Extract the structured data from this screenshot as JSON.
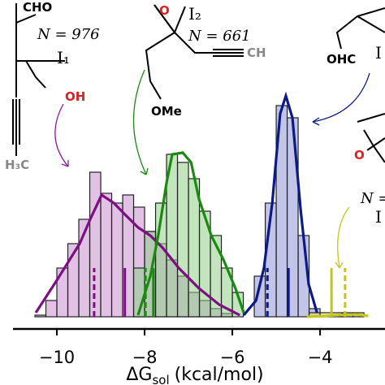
{
  "chart_data": {
    "type": "histogram",
    "xlim": [
      -11,
      -2.52
    ],
    "ylim": [
      0,
      60
    ],
    "xticks": [
      {
        "value": -10,
        "label": "−10"
      },
      {
        "value": -8,
        "label": "−8"
      },
      {
        "value": -6,
        "label": "−6"
      },
      {
        "value": -4,
        "label": "−4"
      }
    ],
    "xlabel": {
      "main": "ΔG",
      "sub": "sol",
      "unit": "(kcal/mol)"
    },
    "series": [
      {
        "color": "#c98fcf",
        "edge": "#222222",
        "curve_color": "#7d0f82",
        "bins": [
          -10.5,
          -10.25,
          -10.0,
          -9.75,
          -9.5,
          -9.25,
          -9.0,
          -8.75,
          -8.5,
          -8.25,
          -8.0,
          -7.75,
          -7.5,
          -7.25,
          -7.0,
          -6.75,
          -6.5,
          -6.25,
          -6.0
        ],
        "values": [
          0.4,
          4,
          12,
          18,
          24,
          35.6,
          30.4,
          28,
          30,
          27,
          21,
          18,
          14,
          10,
          6,
          4,
          2,
          0.8
        ],
        "curve": {
          "x": [
            -10.48,
            -10.0,
            -9.48,
            -9.24,
            -8.98,
            -8.7,
            -8.43,
            -8.15,
            -7.87,
            -7.59,
            -7.22,
            -6.76,
            -6.3,
            -5.83
          ],
          "y": [
            1,
            9,
            18,
            24,
            30,
            28,
            25,
            22,
            20,
            17,
            12,
            7,
            3,
            0.4
          ]
        },
        "mean": -9.15,
        "median": -8.45
      },
      {
        "color": "#8fcf88",
        "edge": "#222222",
        "curve_color": "#1a8a10",
        "bins": [
          -8.25,
          -8.0,
          -7.75,
          -7.5,
          -7.25,
          -7.0,
          -6.75,
          -6.5,
          -6.25,
          -6.0,
          -5.75
        ],
        "values": [
          12,
          21,
          28,
          40,
          38,
          34,
          26,
          20,
          12,
          6
        ],
        "curve": {
          "x": [
            -8.15,
            -7.87,
            -7.69,
            -7.5,
            -7.37,
            -7.13,
            -6.94,
            -6.76,
            -6.48,
            -6.2,
            -5.93,
            -5.74
          ],
          "y": [
            0.4,
            10,
            20,
            33,
            40,
            40.4,
            38,
            29,
            20,
            14,
            7,
            1
          ]
        },
        "mean": -7.98,
        "median": -7.8
      },
      {
        "color": "#8f95d4",
        "edge": "#222222",
        "curve_color": "#0b1a88",
        "bins": [
          -5.5,
          -5.25,
          -5.0,
          -4.75,
          -4.5,
          -4.25,
          -4.0
        ],
        "values": [
          10,
          28,
          52,
          49,
          20,
          2
        ],
        "curve": {
          "x": [
            -5.74,
            -5.46,
            -5.28,
            -5.09,
            -4.91,
            -4.78,
            -4.63,
            -4.44,
            -4.26,
            -4.07
          ],
          "y": [
            0.4,
            4,
            12,
            28,
            50,
            54.4,
            49,
            26,
            8,
            1
          ]
        },
        "mean": -5.2,
        "median": -4.72
      },
      {
        "color": "#e3e36a",
        "edge": "#222222",
        "curve_color": "#c4c41c",
        "bins": [
          -4.25,
          -4.0,
          -3.75,
          -3.5,
          -3.25,
          -3.0
        ],
        "values": [
          1,
          1,
          1,
          1,
          1
        ],
        "curve": {
          "x": [
            -4.3,
            -3.9,
            -3.6,
            -3.2,
            -2.9
          ],
          "y": [
            0,
            0.2,
            0.4,
            0.6,
            0.2
          ]
        },
        "mean": -3.43,
        "median": -3.74
      }
    ],
    "annotations": [
      "CHO",
      "N = 976",
      "I₁",
      "OH",
      "H₃C",
      "O",
      "I₂",
      "N = 661",
      "CH",
      "OMe",
      "OHC",
      "I",
      "O",
      "N =",
      "I"
    ]
  }
}
